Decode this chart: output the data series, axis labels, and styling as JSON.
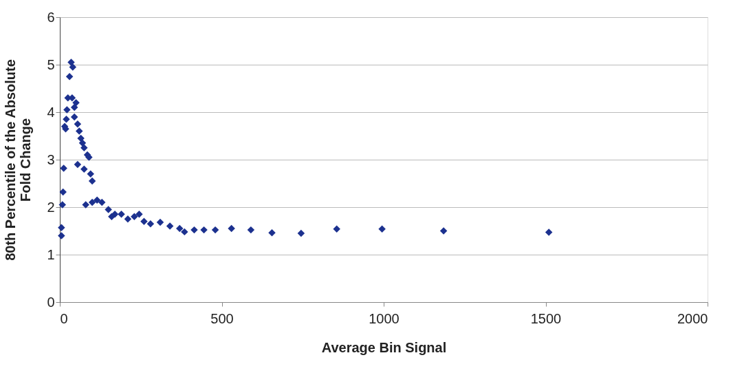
{
  "chart_data": {
    "type": "scatter",
    "xlabel": "Average Bin Signal",
    "ylabel": "80th Percentile of the Absolute Fold Change",
    "x": [
      5,
      5,
      8,
      10,
      12,
      15,
      18,
      20,
      22,
      25,
      30,
      35,
      40,
      38,
      45,
      50,
      45,
      55,
      60,
      65,
      70,
      55,
      75,
      85,
      90,
      75,
      95,
      100,
      80,
      100,
      115,
      130,
      150,
      170,
      160,
      190,
      210,
      230,
      245,
      260,
      280,
      310,
      340,
      370,
      385,
      415,
      445,
      480,
      530,
      590,
      655,
      745,
      855,
      995,
      1185,
      1510
    ],
    "series": [
      {
        "color": "#1c318f",
        "values": [
          1.4,
          1.57,
          2.05,
          2.32,
          2.82,
          3.7,
          3.65,
          3.85,
          4.05,
          4.3,
          4.75,
          5.05,
          4.95,
          4.3,
          4.1,
          4.2,
          3.9,
          3.75,
          3.6,
          3.45,
          3.35,
          2.9,
          3.25,
          3.1,
          3.05,
          2.8,
          2.7,
          2.55,
          2.05,
          2.1,
          2.15,
          2.1,
          1.95,
          1.85,
          1.8,
          1.85,
          1.75,
          1.8,
          1.85,
          1.7,
          1.65,
          1.68,
          1.6,
          1.55,
          1.48,
          1.52,
          1.52,
          1.52,
          1.55,
          1.52,
          1.46,
          1.45,
          1.54,
          1.54,
          1.5,
          1.47
        ]
      }
    ],
    "xlim": [
      0,
      2000
    ],
    "xticks": [
      0,
      500,
      1000,
      1500,
      2000
    ],
    "ylim": [
      0,
      6
    ],
    "yticks": [
      0,
      1,
      2,
      3,
      4,
      5,
      6
    ],
    "grid": "y",
    "marker": "diamond"
  }
}
